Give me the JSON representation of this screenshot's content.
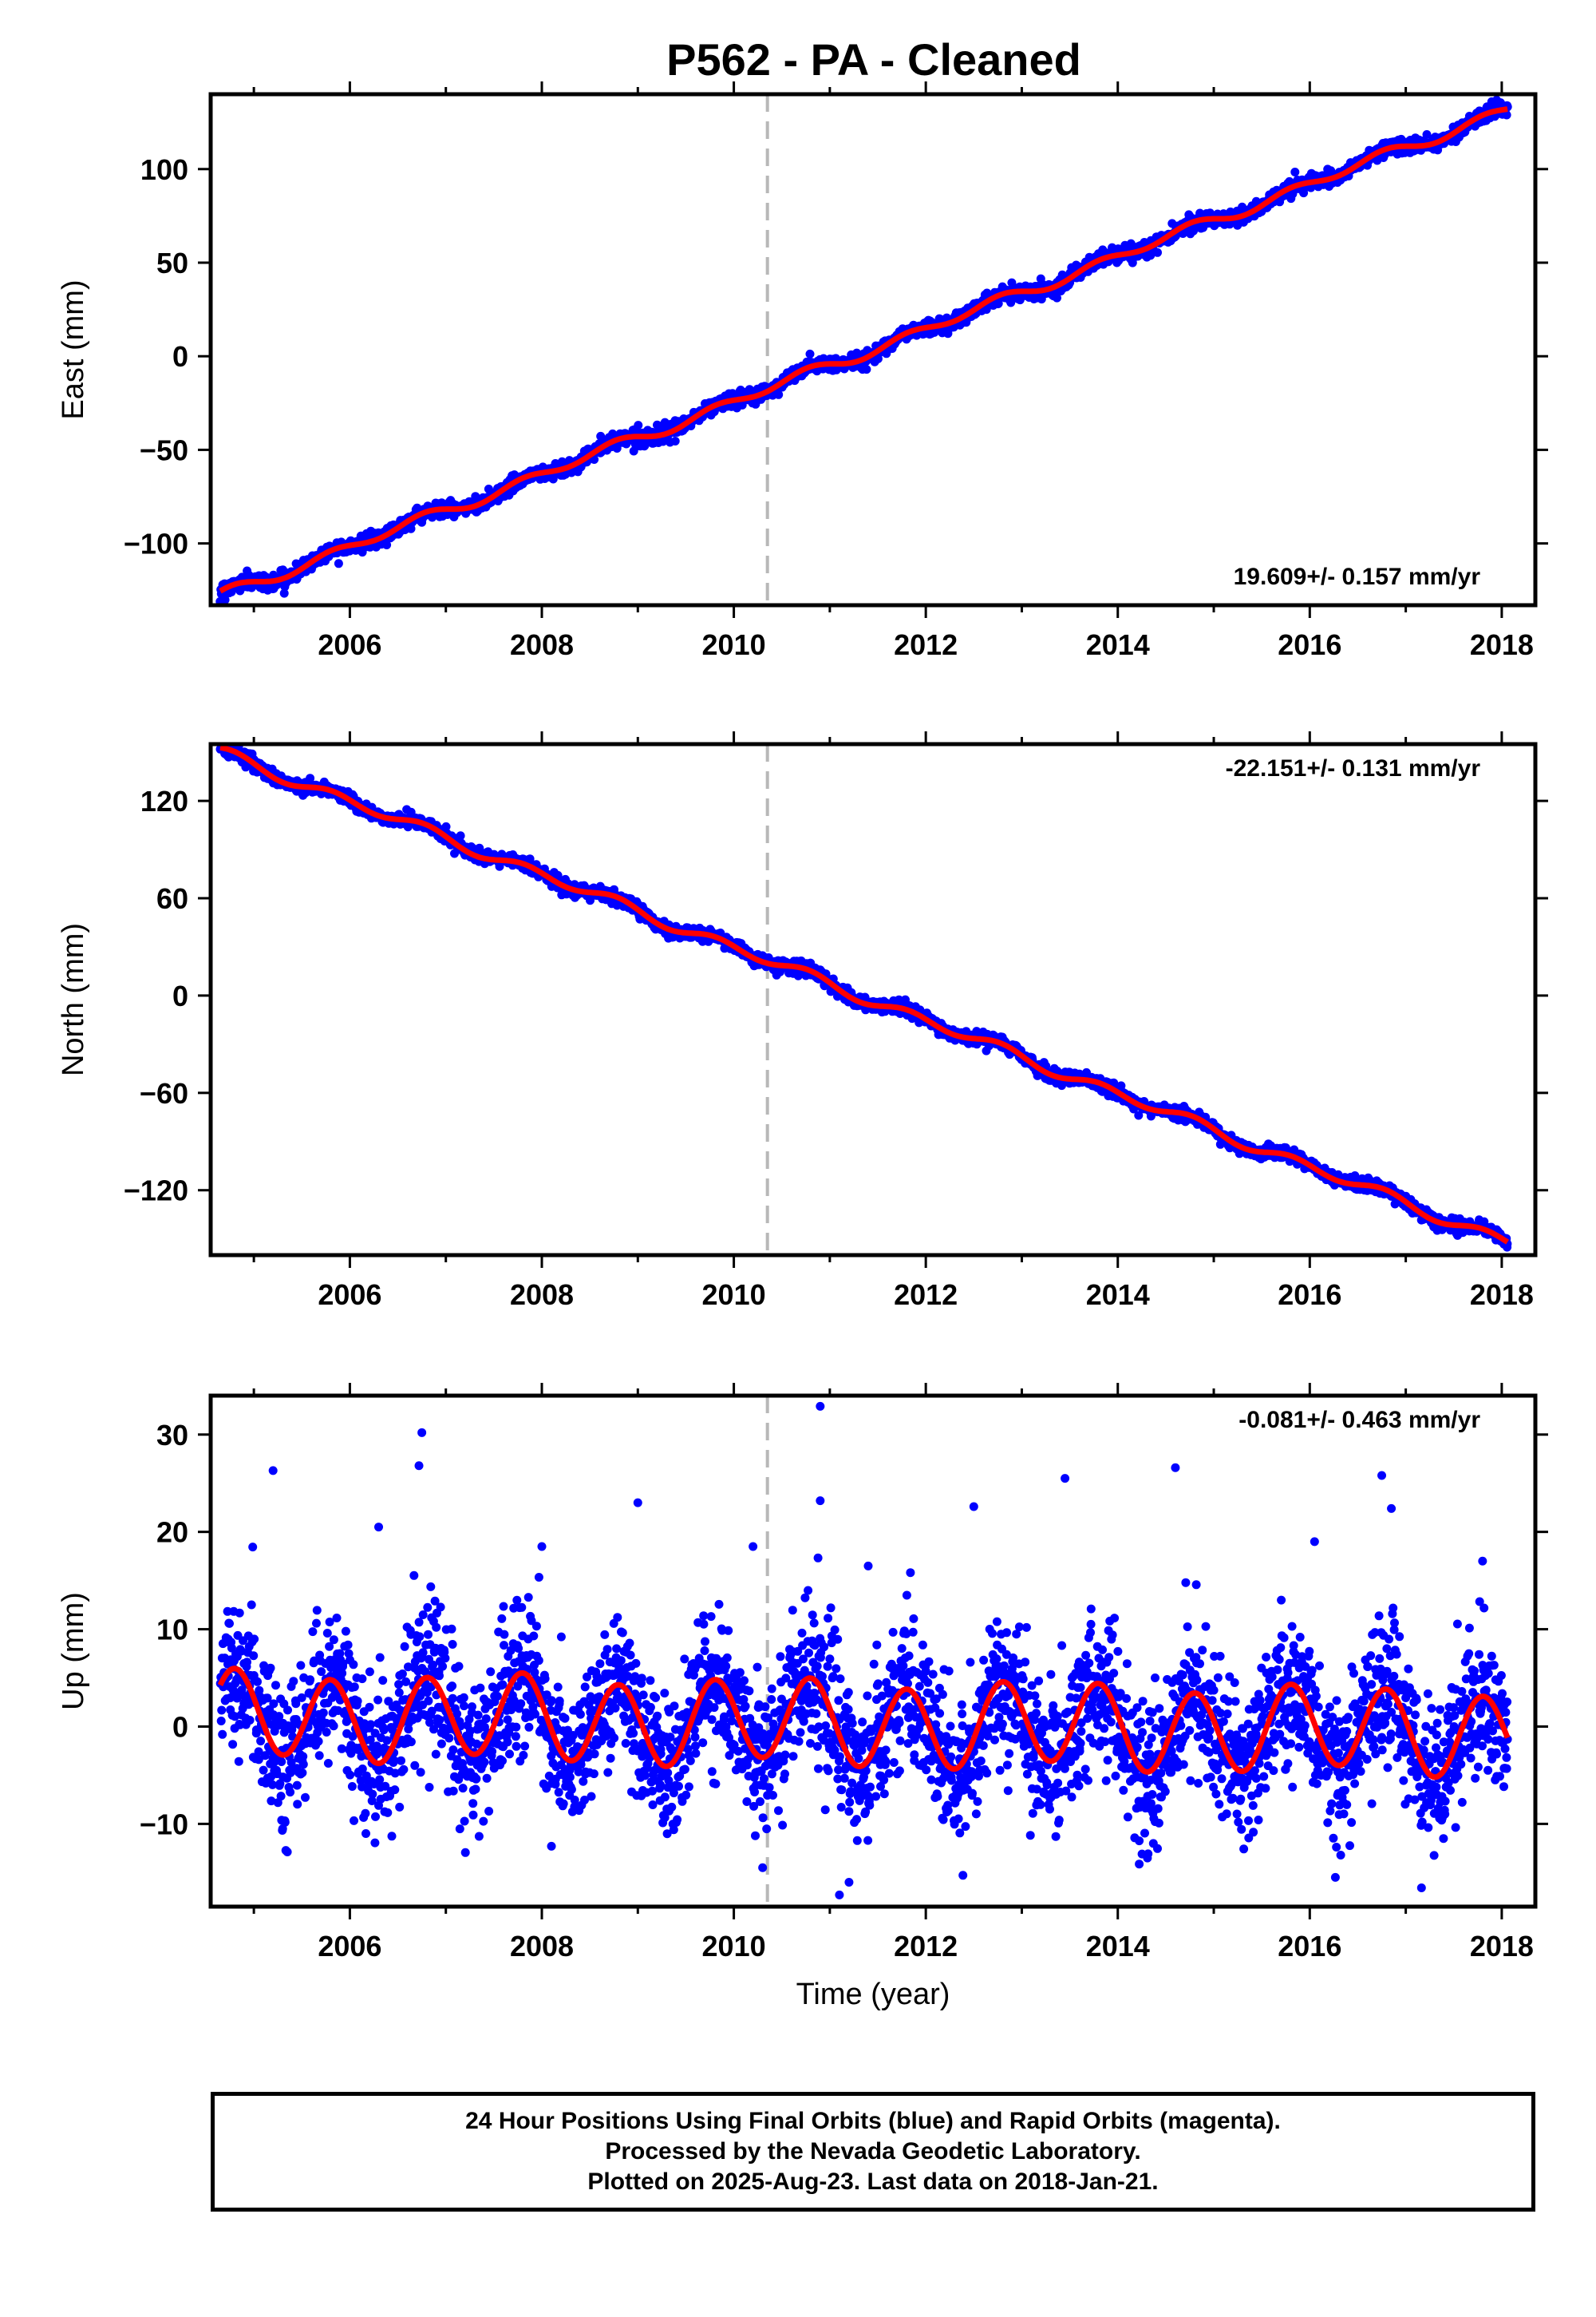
{
  "title": "P562  - PA - Cleaned",
  "colors": {
    "points": "#0000ff",
    "model": "#ff0000",
    "marker": "#b8b8b8",
    "frame": "#000000"
  },
  "chart_data": [
    {
      "type": "scatter",
      "ylabel": "East (mm)",
      "xlabel": "",
      "x_ticks": [
        "2006",
        "2008",
        "2010",
        "2012",
        "2014",
        "2016",
        "2018"
      ],
      "y_ticks": [
        "100",
        "50",
        "0",
        "−50",
        "−100"
      ],
      "xlim": [
        2004.55,
        2018.35
      ],
      "ylim": [
        -133,
        140
      ],
      "rate_label": "19.609+/- 0.157 mm/yr",
      "vertical_marker_x": 2010.35,
      "x_start": 2004.65,
      "x_end": 2018.06,
      "trend": {
        "start_value": -128,
        "end_value": 132,
        "seasonal_amplitude": 2.5,
        "noise": 2
      },
      "series": [
        {
          "name": "",
          "kind": "points"
        },
        {
          "name": "",
          "kind": "model"
        }
      ]
    },
    {
      "type": "scatter",
      "ylabel": "North (mm)",
      "xlabel": "",
      "x_ticks": [
        "2006",
        "2008",
        "2010",
        "2012",
        "2014",
        "2016",
        "2018"
      ],
      "y_ticks": [
        "120",
        "60",
        "0",
        "−60",
        "−120"
      ],
      "xlim": [
        2004.55,
        2018.35
      ],
      "ylim": [
        -160,
        155
      ],
      "rate_label": "-22.151+/- 0.131 mm/yr",
      "vertical_marker_x": 2010.35,
      "x_start": 2004.65,
      "x_end": 2018.06,
      "trend": {
        "start_value": 150,
        "end_value": -152,
        "seasonal_amplitude": 3,
        "noise": 2
      },
      "series": [
        {
          "name": "",
          "kind": "points"
        },
        {
          "name": "",
          "kind": "model"
        }
      ]
    },
    {
      "type": "scatter",
      "ylabel": "Up (mm)",
      "xlabel": "Time (year)",
      "x_ticks": [
        "2006",
        "2008",
        "2010",
        "2012",
        "2014",
        "2016",
        "2018"
      ],
      "y_ticks": [
        "30",
        "20",
        "10",
        "0",
        "−10"
      ],
      "xlim": [
        2004.55,
        2018.35
      ],
      "ylim": [
        -18.5,
        34
      ],
      "rate_label": "-0.081+/- 0.463 mm/yr",
      "vertical_marker_x": 2010.35,
      "x_start": 2004.65,
      "x_end": 2018.06,
      "trend": {
        "start_value": 1.2,
        "end_value": -0.6,
        "seasonal_amplitude": 4.2,
        "noise": 3.5
      },
      "outliers": [
        [
          2005.2,
          26.3
        ],
        [
          2006.3,
          20.5
        ],
        [
          2006.72,
          26.8
        ],
        [
          2006.75,
          30.2
        ],
        [
          2008.0,
          18.5
        ],
        [
          2009.0,
          23.0
        ],
        [
          2010.2,
          18.5
        ],
        [
          2010.9,
          32.9
        ],
        [
          2010.9,
          23.2
        ],
        [
          2011.4,
          16.5
        ],
        [
          2012.5,
          22.6
        ],
        [
          2013.45,
          25.5
        ],
        [
          2014.6,
          26.6
        ],
        [
          2016.05,
          19.0
        ],
        [
          2016.75,
          25.8
        ],
        [
          2016.85,
          22.4
        ],
        [
          2017.8,
          17.0
        ],
        [
          2011.1,
          -17.3
        ],
        [
          2010.3,
          -14.5
        ],
        [
          2011.2,
          -16.0
        ],
        [
          2005.3,
          -10.5
        ],
        [
          2008.1,
          -12.3
        ]
      ],
      "series": [
        {
          "name": "",
          "kind": "points"
        },
        {
          "name": "",
          "kind": "model"
        }
      ]
    }
  ],
  "footer": {
    "line1": "24 Hour Positions Using Final Orbits (blue) and Rapid Orbits (magenta).",
    "line2": "Processed by the Nevada Geodetic Laboratory.",
    "line3": "Plotted on 2025-Aug-23. Last data on 2018-Jan-21."
  }
}
